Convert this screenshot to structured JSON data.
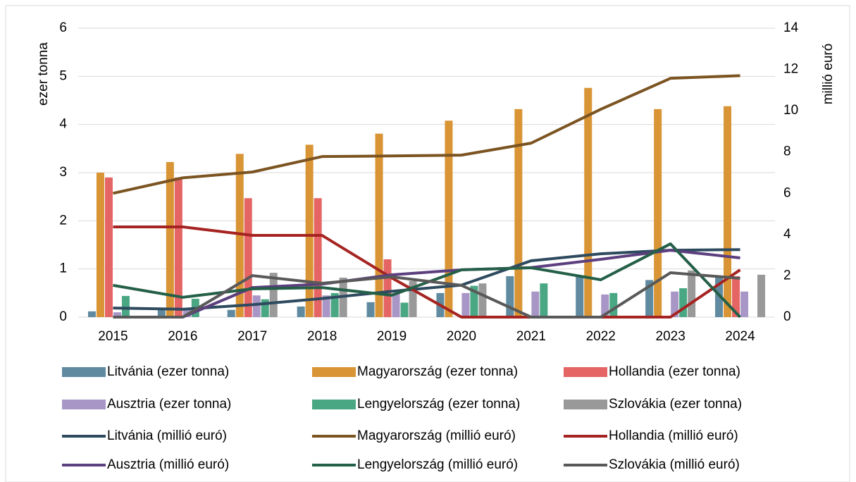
{
  "chart_data": {
    "type": "combo",
    "categories": [
      "2015",
      "2016",
      "2017",
      "2018",
      "2019",
      "2020",
      "2021",
      "2022",
      "2023",
      "2024"
    ],
    "ylabel": "ezer tonna",
    "y2label": "millió euró",
    "ylim": [
      0,
      6
    ],
    "yticks": [
      0,
      1,
      2,
      3,
      4,
      5,
      6
    ],
    "y2lim": [
      0,
      14
    ],
    "y2ticks": [
      0,
      2,
      4,
      6,
      8,
      10,
      12,
      14
    ],
    "grid": true,
    "legend": "bottom",
    "series": [
      {
        "name": "Litvánia (ezer tonna)",
        "type": "bar",
        "color": "#5f8aa0",
        "values": [
          0.12,
          0.15,
          0.15,
          0.22,
          0.31,
          0.5,
          0.85,
          0.85,
          0.77,
          0.82
        ]
      },
      {
        "name": "Magyarország (ezer tonna)",
        "type": "bar",
        "color": "#d99535",
        "values": [
          3.0,
          3.22,
          3.39,
          3.58,
          3.81,
          4.08,
          4.32,
          4.76,
          4.32,
          4.38
        ]
      },
      {
        "name": "Hollandia (ezer tonna)",
        "type": "bar",
        "color": "#e46564",
        "values": [
          2.9,
          2.9,
          2.47,
          2.47,
          1.2,
          0,
          0,
          0,
          0,
          0.85
        ]
      },
      {
        "name": "Ausztria (ezer tonna)",
        "type": "bar",
        "color": "#a897c6",
        "values": [
          0.1,
          0.15,
          0.45,
          0.45,
          0.5,
          0.5,
          0.53,
          0.47,
          0.53,
          0.53
        ]
      },
      {
        "name": "Lengyelország (ezer tonna)",
        "type": "bar",
        "color": "#4aa784",
        "values": [
          0.44,
          0.38,
          0.37,
          0.5,
          0.3,
          0.65,
          0.7,
          0.5,
          0.6,
          0
        ]
      },
      {
        "name": "Szlovákia (ezer tonna)",
        "type": "bar",
        "color": "#999999",
        "values": [
          0,
          0,
          0.92,
          0.82,
          0.75,
          0.7,
          0,
          0,
          0.97,
          0.88
        ]
      },
      {
        "name": "Litvánia (millió euró)",
        "type": "line",
        "axis": "y2",
        "color": "#2e4a5f",
        "values": [
          0.44,
          0.38,
          0.6,
          0.9,
          1.25,
          1.55,
          2.73,
          3.07,
          3.24,
          3.27
        ]
      },
      {
        "name": "Magyarország (millió euró)",
        "type": "line",
        "axis": "y2",
        "color": "#7b5421",
        "values": [
          6.0,
          6.75,
          7.03,
          7.78,
          7.81,
          7.85,
          8.43,
          10.07,
          11.57,
          11.7
        ]
      },
      {
        "name": "Hollandia (millió euró)",
        "type": "line",
        "axis": "y2",
        "color": "#a52422",
        "values": [
          4.37,
          4.37,
          3.96,
          3.96,
          1.9,
          0,
          0,
          0,
          0,
          2.29
        ]
      },
      {
        "name": "Ausztria (millió euró)",
        "type": "line",
        "axis": "y2",
        "color": "#5c3f7e",
        "values": [
          0,
          0,
          1.43,
          1.6,
          2.05,
          2.29,
          2.4,
          2.8,
          3.24,
          2.87
        ]
      },
      {
        "name": "Lengyelország (millió euró)",
        "type": "line",
        "axis": "y2",
        "color": "#245f48",
        "values": [
          1.54,
          0.96,
          1.37,
          1.43,
          1.06,
          2.29,
          2.39,
          1.81,
          3.55,
          0
        ]
      },
      {
        "name": "Szlovákia (millió euró)",
        "type": "line",
        "axis": "y2",
        "color": "#595959",
        "values": [
          0,
          0,
          2.01,
          1.64,
          1.95,
          1.54,
          0,
          0,
          2.15,
          1.88
        ]
      }
    ]
  }
}
